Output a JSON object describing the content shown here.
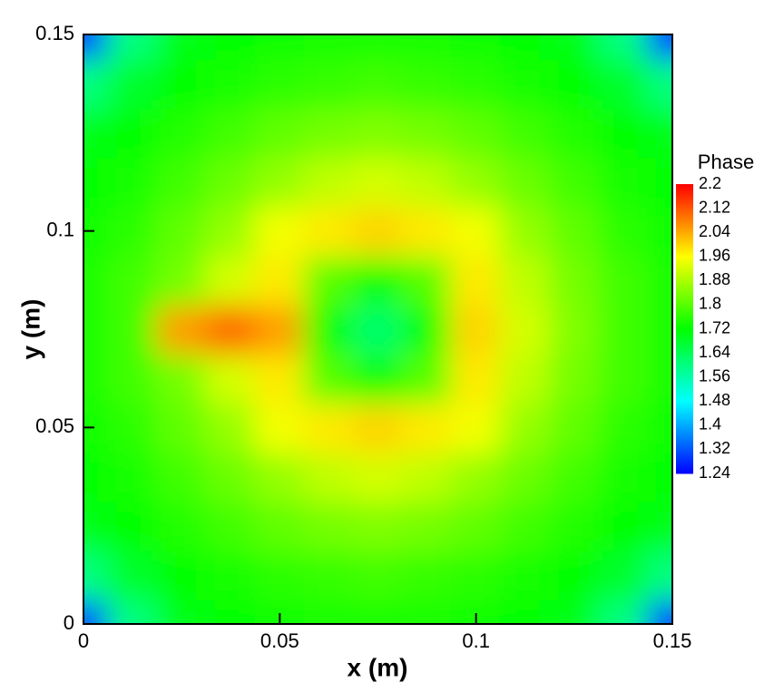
{
  "chart_data": {
    "type": "contour",
    "xlabel": "x (m)",
    "ylabel": "y (m)",
    "xlim": [
      0,
      0.15
    ],
    "ylim": [
      0,
      0.15
    ],
    "xticks": [
      0,
      0.05,
      0.1,
      0.15
    ],
    "yticks": [
      0,
      0.05,
      0.1,
      0.15
    ],
    "x": [
      0,
      0.0125,
      0.025,
      0.0375,
      0.05,
      0.0625,
      0.075,
      0.0875,
      0.1,
      0.1125,
      0.125,
      0.1375,
      0.15
    ],
    "y": [
      0,
      0.0125,
      0.025,
      0.0375,
      0.05,
      0.0625,
      0.075,
      0.0875,
      0.1,
      0.1125,
      0.125,
      0.1375,
      0.15
    ],
    "z": [
      [
        1.3,
        1.6,
        1.7,
        1.72,
        1.73,
        1.74,
        1.74,
        1.74,
        1.73,
        1.72,
        1.7,
        1.6,
        1.3
      ],
      [
        1.6,
        1.68,
        1.72,
        1.74,
        1.76,
        1.77,
        1.78,
        1.77,
        1.76,
        1.74,
        1.72,
        1.68,
        1.6
      ],
      [
        1.7,
        1.72,
        1.75,
        1.78,
        1.81,
        1.83,
        1.84,
        1.83,
        1.81,
        1.78,
        1.75,
        1.72,
        1.7
      ],
      [
        1.72,
        1.74,
        1.78,
        1.82,
        1.86,
        1.9,
        1.92,
        1.9,
        1.86,
        1.82,
        1.78,
        1.74,
        1.72
      ],
      [
        1.73,
        1.76,
        1.81,
        1.86,
        1.95,
        1.98,
        2.0,
        1.98,
        1.95,
        1.86,
        1.81,
        1.76,
        1.73
      ],
      [
        1.74,
        1.78,
        1.83,
        1.92,
        1.98,
        1.8,
        1.72,
        1.8,
        1.98,
        1.9,
        1.83,
        1.78,
        1.74
      ],
      [
        1.74,
        1.78,
        2.05,
        2.1,
        2.05,
        1.72,
        1.62,
        1.72,
        2.0,
        1.92,
        1.84,
        1.78,
        1.74
      ],
      [
        1.74,
        1.78,
        1.83,
        1.92,
        1.98,
        1.8,
        1.72,
        1.8,
        1.98,
        1.9,
        1.83,
        1.78,
        1.74
      ],
      [
        1.73,
        1.76,
        1.81,
        1.86,
        1.95,
        1.98,
        2.0,
        1.98,
        1.95,
        1.86,
        1.81,
        1.76,
        1.73
      ],
      [
        1.72,
        1.74,
        1.78,
        1.82,
        1.86,
        1.9,
        1.92,
        1.9,
        1.86,
        1.82,
        1.78,
        1.74,
        1.72
      ],
      [
        1.7,
        1.72,
        1.75,
        1.78,
        1.81,
        1.83,
        1.84,
        1.83,
        1.81,
        1.78,
        1.75,
        1.72,
        1.7
      ],
      [
        1.6,
        1.68,
        1.72,
        1.74,
        1.76,
        1.77,
        1.78,
        1.77,
        1.76,
        1.74,
        1.72,
        1.68,
        1.6
      ],
      [
        1.3,
        1.6,
        1.7,
        1.72,
        1.73,
        1.74,
        1.74,
        1.74,
        1.73,
        1.72,
        1.7,
        1.6,
        1.3
      ]
    ],
    "colorbar": {
      "title": "Phase",
      "zlim": [
        1.24,
        2.2
      ],
      "ticks": [
        1.24,
        1.32,
        1.4,
        1.48,
        1.56,
        1.64,
        1.72,
        1.8,
        1.88,
        1.96,
        2.04,
        2.12,
        2.2
      ]
    }
  }
}
